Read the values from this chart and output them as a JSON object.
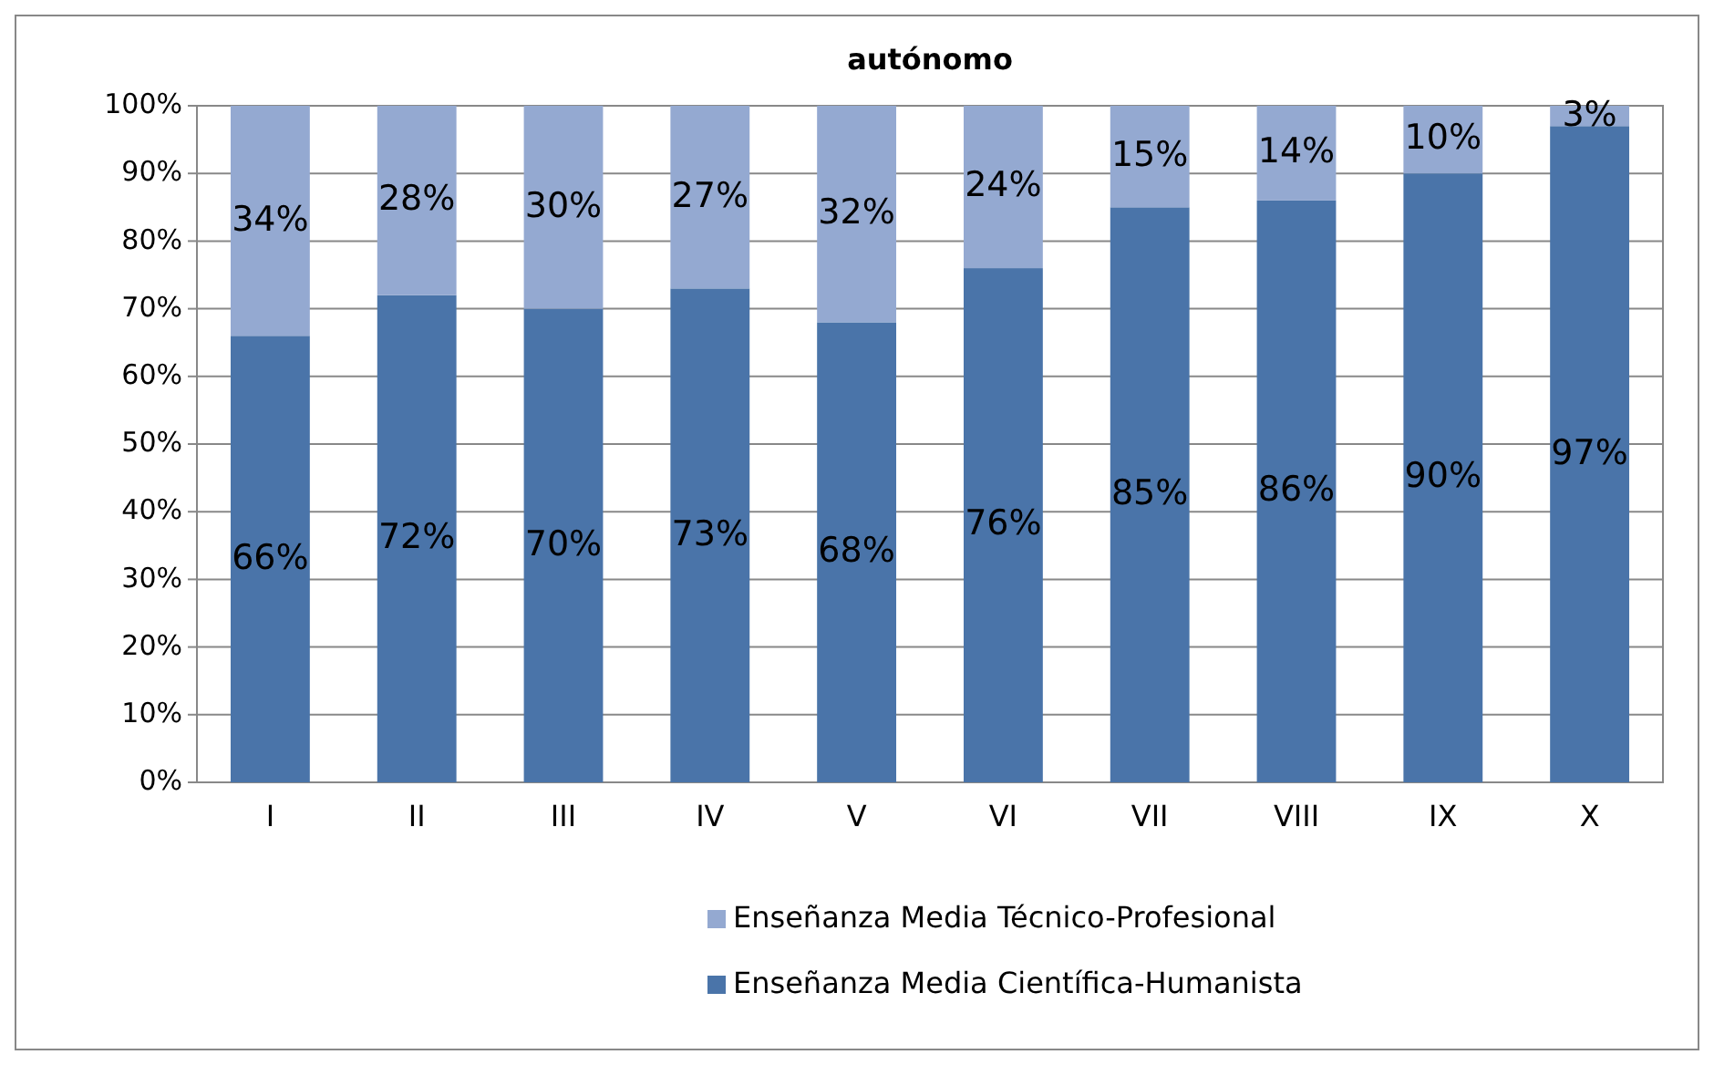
{
  "chart_data": {
    "type": "bar",
    "title": "autónomo",
    "stacked": true,
    "categories": [
      "I",
      "II",
      "III",
      "IV",
      "V",
      "VI",
      "VII",
      "VIII",
      "IX",
      "X"
    ],
    "series": [
      {
        "name": "Enseñanza Media Científica-Humanista",
        "color": "#4a74a9",
        "values": [
          66,
          72,
          70,
          73,
          68,
          76,
          85,
          86,
          90,
          97
        ],
        "value_labels": [
          "66%",
          "72%",
          "70%",
          "73%",
          "68%",
          "76%",
          "85%",
          "86%",
          "90%",
          "97%"
        ]
      },
      {
        "name": "Enseñanza Media Técnico-Profesional",
        "color": "#94a9d1",
        "values": [
          34,
          28,
          30,
          27,
          32,
          24,
          15,
          14,
          10,
          3
        ],
        "value_labels": [
          "34%",
          "28%",
          "30%",
          "27%",
          "32%",
          "24%",
          "15%",
          "14%",
          "10%",
          "3%"
        ]
      }
    ],
    "ylim": [
      0,
      100
    ],
    "yticks": [
      {
        "value": 0,
        "label": "0%"
      },
      {
        "value": 10,
        "label": "10%"
      },
      {
        "value": 20,
        "label": "20%"
      },
      {
        "value": 30,
        "label": "30%"
      },
      {
        "value": 40,
        "label": "40%"
      },
      {
        "value": 50,
        "label": "50%"
      },
      {
        "value": 60,
        "label": "60%"
      },
      {
        "value": 70,
        "label": "70%"
      },
      {
        "value": 80,
        "label": "80%"
      },
      {
        "value": 90,
        "label": "90%"
      },
      {
        "value": 100,
        "label": "100%"
      }
    ],
    "grid": "y",
    "legend": "bottom"
  }
}
